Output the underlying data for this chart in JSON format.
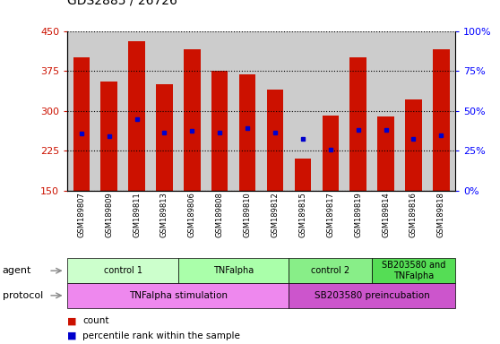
{
  "title": "GDS2885 / 26726",
  "samples": [
    "GSM189807",
    "GSM189809",
    "GSM189811",
    "GSM189813",
    "GSM189806",
    "GSM189808",
    "GSM189810",
    "GSM189812",
    "GSM189815",
    "GSM189817",
    "GSM189819",
    "GSM189814",
    "GSM189816",
    "GSM189818"
  ],
  "bar_tops": [
    400,
    355,
    430,
    350,
    415,
    375,
    368,
    340,
    210,
    292,
    400,
    290,
    322,
    415
  ],
  "bar_bottoms": [
    150,
    150,
    150,
    150,
    150,
    150,
    150,
    150,
    150,
    150,
    150,
    150,
    150,
    150
  ],
  "blue_dots": [
    258,
    252,
    285,
    260,
    262,
    260,
    268,
    260,
    247,
    228,
    265,
    265,
    248,
    255
  ],
  "ylim": [
    150,
    450
  ],
  "y_ticks": [
    150,
    225,
    300,
    375,
    450
  ],
  "right_yticks": [
    0,
    25,
    50,
    75,
    100
  ],
  "right_ylabels": [
    "0%",
    "25%",
    "50%",
    "75%",
    "100%"
  ],
  "bar_color": "#cc1100",
  "dot_color": "#0000cc",
  "agent_groups": [
    {
      "label": "control 1",
      "start": 0,
      "end": 4,
      "color": "#ccffcc"
    },
    {
      "label": "TNFalpha",
      "start": 4,
      "end": 8,
      "color": "#aaffaa"
    },
    {
      "label": "control 2",
      "start": 8,
      "end": 11,
      "color": "#88ee88"
    },
    {
      "label": "SB203580 and\nTNFalpha",
      "start": 11,
      "end": 14,
      "color": "#55dd55"
    }
  ],
  "protocol_groups": [
    {
      "label": "TNFalpha stimulation",
      "start": 0,
      "end": 8,
      "color": "#ee88ee"
    },
    {
      "label": "SB203580 preincubation",
      "start": 8,
      "end": 14,
      "color": "#cc55cc"
    }
  ],
  "legend_count_color": "#cc1100",
  "legend_pct_color": "#0000cc",
  "column_bg_color": "#cccccc",
  "plot_bg_color": "#ffffff"
}
